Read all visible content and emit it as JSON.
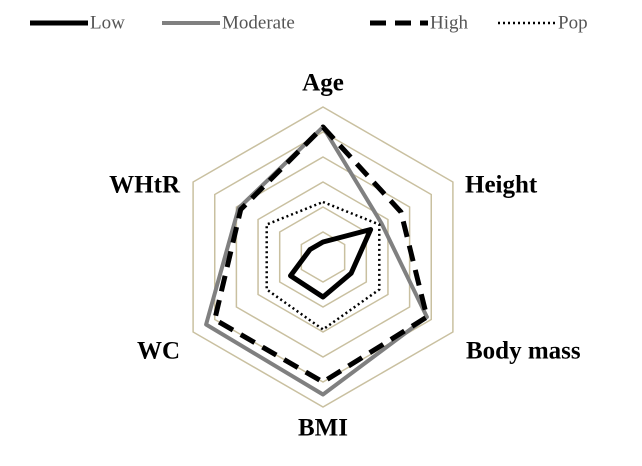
{
  "chart_data": {
    "type": "radar",
    "categories": [
      "Age",
      "Height",
      "Body mass",
      "BMI",
      "WC",
      "WHtR"
    ],
    "series": [
      {
        "name": "Low",
        "color": "#000000",
        "dash": "solid",
        "values": [
          0.6,
          2.2,
          1.3,
          1.6,
          1.5,
          0.6
        ]
      },
      {
        "name": "Moderate",
        "color": "#808080",
        "dash": "solid",
        "values": [
          5.2,
          2.7,
          4.8,
          5.5,
          5.4,
          3.9
        ]
      },
      {
        "name": "High",
        "color": "#000000",
        "dash": "dashed",
        "values": [
          5.2,
          3.6,
          4.8,
          5.0,
          5.0,
          3.8
        ]
      },
      {
        "name": "Pop",
        "color": "#000000",
        "dash": "dotted",
        "values": [
          2.2,
          2.6,
          2.6,
          2.9,
          2.6,
          2.6
        ]
      }
    ],
    "rlim": [
      0,
      6
    ],
    "rticks": [
      1,
      2,
      3,
      4,
      5,
      6
    ],
    "grid_color": "#c9c0a0",
    "legend": "top"
  }
}
